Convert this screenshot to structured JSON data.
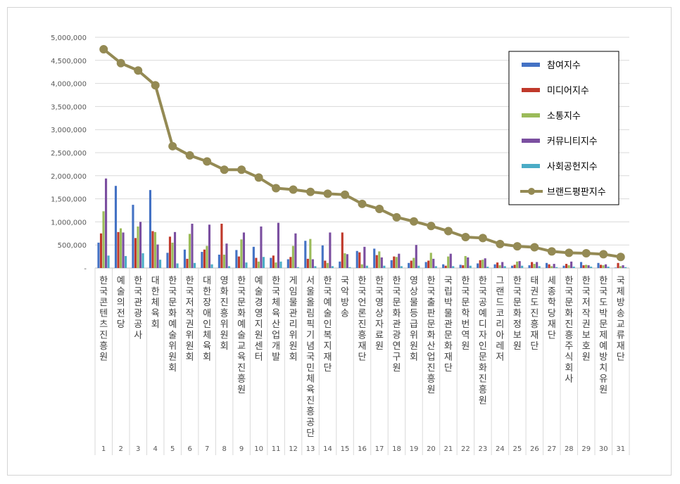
{
  "chart_data": {
    "type": "bar",
    "title": "",
    "xlabel": "",
    "ylabel": "",
    "ylim": [
      0,
      5000000
    ],
    "yticks": [
      0,
      500000,
      1000000,
      1500000,
      2000000,
      2500000,
      3000000,
      3500000,
      4000000,
      4500000,
      5000000
    ],
    "ytick_labels": [
      "-",
      "500,000",
      "1,000,000",
      "1,500,000",
      "2,000,000",
      "2,500,000",
      "3,000,000",
      "3,500,000",
      "4,000,000",
      "4,500,000",
      "5,000,000"
    ],
    "grid": true,
    "legend_position": "top-right",
    "numbers": [
      "1",
      "2",
      "3",
      "4",
      "5",
      "6",
      "7",
      "8",
      "9",
      "10",
      "11",
      "12",
      "13",
      "14",
      "15",
      "16",
      "17",
      "18",
      "19",
      "20",
      "21",
      "22",
      "23",
      "24",
      "25",
      "26",
      "27",
      "28",
      "29",
      "30",
      "31"
    ],
    "categories": [
      "한국콘텐츠진흥원",
      "예술의전당",
      "한국관광공사",
      "대한체육회",
      "한국문화예술위원회",
      "한국저작권위원회",
      "대한장애인체육회",
      "영화진흥위원회",
      "한국문화예술교육진흥원",
      "예술경영지원센터",
      "한국체육산업개발",
      "게임물관리위원회",
      "서울올림픽기념국민체육진흥공단",
      "한국예술인복지재단",
      "국악방송",
      "한국언론진흥재단",
      "한국영상자료원",
      "한국문화관광연구원",
      "영상물등급위원회",
      "한국출판문화산업진흥원",
      "국립박물관문화재단",
      "한국문학번역원",
      "한국공예디자인문화진흥원",
      "그랜드코리아레저",
      "한국문화정보원",
      "태권도진흥재단",
      "세종학당재단",
      "한국문화진흥주식회사",
      "한국저작권보호원",
      "한국도박문제예방치유원",
      "국제방송교류재단"
    ],
    "series": [
      {
        "name": "참여지수",
        "color": "#4472C4",
        "kind": "bar",
        "values": [
          550000,
          1780000,
          1370000,
          1690000,
          330000,
          400000,
          350000,
          290000,
          390000,
          460000,
          220000,
          190000,
          590000,
          490000,
          140000,
          370000,
          420000,
          170000,
          110000,
          130000,
          80000,
          70000,
          100000,
          80000,
          50000,
          60000,
          110000,
          50000,
          130000,
          110000,
          10000
        ]
      },
      {
        "name": "미디어지수",
        "color": "#C0392B",
        "kind": "bar",
        "values": [
          750000,
          780000,
          650000,
          800000,
          680000,
          200000,
          400000,
          960000,
          250000,
          220000,
          270000,
          240000,
          200000,
          160000,
          770000,
          340000,
          280000,
          250000,
          160000,
          160000,
          50000,
          60000,
          170000,
          120000,
          70000,
          130000,
          80000,
          90000,
          60000,
          70000,
          110000
        ]
      },
      {
        "name": "소통지수",
        "color": "#9BBB59",
        "kind": "bar",
        "values": [
          1230000,
          860000,
          900000,
          780000,
          550000,
          740000,
          480000,
          290000,
          620000,
          140000,
          120000,
          480000,
          630000,
          110000,
          320000,
          80000,
          360000,
          240000,
          220000,
          330000,
          250000,
          260000,
          180000,
          60000,
          140000,
          90000,
          40000,
          60000,
          70000,
          60000,
          40000
        ]
      },
      {
        "name": "커뮤니티지수",
        "color": "#7B4FA0",
        "kind": "bar",
        "values": [
          1940000,
          770000,
          1000000,
          510000,
          780000,
          960000,
          940000,
          530000,
          770000,
          900000,
          980000,
          750000,
          190000,
          770000,
          300000,
          460000,
          230000,
          310000,
          500000,
          200000,
          310000,
          230000,
          210000,
          130000,
          150000,
          130000,
          90000,
          140000,
          60000,
          80000,
          60000
        ]
      },
      {
        "name": "사회공헌지수",
        "color": "#4BACC6",
        "kind": "bar",
        "values": [
          270000,
          260000,
          320000,
          180000,
          100000,
          110000,
          80000,
          40000,
          120000,
          240000,
          140000,
          20000,
          40000,
          40000,
          20000,
          50000,
          50000,
          40000,
          50000,
          40000,
          40000,
          50000,
          30000,
          40000,
          50000,
          40000,
          20000,
          30000,
          30000,
          30000,
          20000
        ]
      },
      {
        "name": "브랜드평판지수",
        "color": "#948A54",
        "kind": "line",
        "values": [
          4740000,
          4440000,
          4280000,
          3960000,
          2640000,
          2440000,
          2310000,
          2130000,
          2130000,
          1960000,
          1730000,
          1700000,
          1650000,
          1610000,
          1590000,
          1390000,
          1280000,
          1100000,
          1010000,
          910000,
          800000,
          670000,
          650000,
          520000,
          470000,
          450000,
          360000,
          330000,
          320000,
          300000,
          240000
        ]
      }
    ]
  }
}
